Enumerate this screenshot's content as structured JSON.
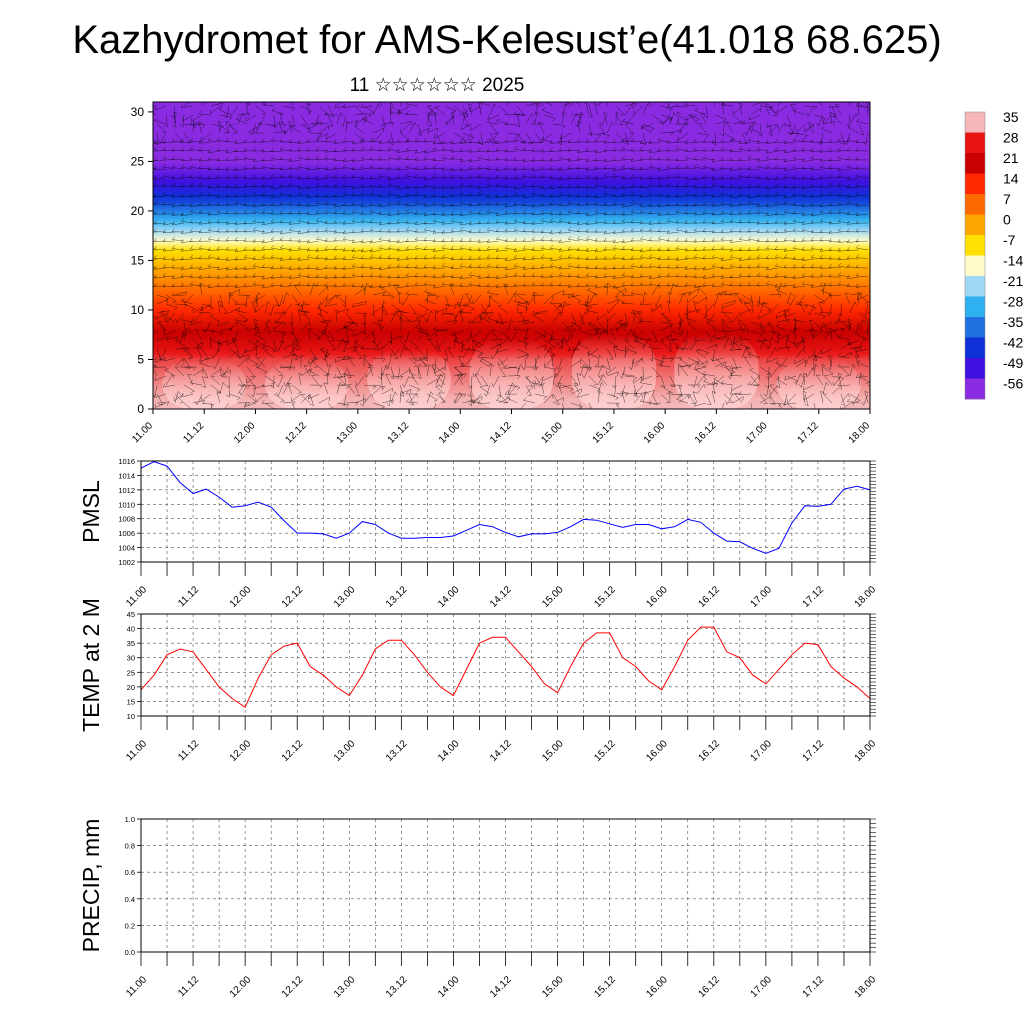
{
  "title": "Kazhydromet for AMS-Kelesust’e(41.018 68.625)",
  "subtitle": "11 ☆☆☆☆☆☆ 2025",
  "time_ticks": [
    "11.00",
    "11.12",
    "12.00",
    "12.12",
    "13.00",
    "13.12",
    "14.00",
    "14.12",
    "15.00",
    "15.12",
    "16.00",
    "16.12",
    "17.00",
    "17.12",
    "18.00"
  ],
  "colors": {
    "pmsl_line": "#0000ff",
    "temp_line": "#ff0000",
    "precip_line": "#006400",
    "grid": "#555555"
  },
  "chart_data": [
    {
      "type": "heatmap",
      "name": "cross-section",
      "x": [
        "11.00",
        "11.12",
        "12.00",
        "12.12",
        "13.00",
        "13.12",
        "14.00",
        "14.12",
        "15.00",
        "15.12",
        "16.00",
        "16.12",
        "17.00",
        "17.12",
        "18.00"
      ],
      "yticks": [
        0,
        5,
        10,
        15,
        20,
        25,
        30
      ],
      "ylim": [
        0,
        31
      ],
      "colorbar": {
        "labels": [
          "35",
          "28",
          "21",
          "14",
          "7",
          "0",
          "-7",
          "-14",
          "-21",
          "-28",
          "-35",
          "-42",
          "-49",
          "-56"
        ],
        "colors": [
          "#f4b6b6",
          "#e81414",
          "#c80000",
          "#ff2800",
          "#ff6a00",
          "#ffa500",
          "#ffe000",
          "#fffbc8",
          "#9fd8f5",
          "#2fb0f0",
          "#2070e0",
          "#1030d8",
          "#4010e0",
          "#8a2be2"
        ]
      },
      "vertical_profile": [
        [
          0,
          36
        ],
        [
          5,
          30
        ],
        [
          10,
          14
        ],
        [
          14,
          0
        ],
        [
          16,
          -7
        ],
        [
          18,
          -21
        ],
        [
          21,
          -40
        ],
        [
          23,
          -49
        ],
        [
          25,
          -56
        ],
        [
          27,
          -58
        ],
        [
          31,
          -60
        ]
      ]
    },
    {
      "type": "line",
      "name": "pmsl",
      "ylabel": "PMSL",
      "ylim": [
        1002,
        1016
      ],
      "yticks": [
        1002,
        1004,
        1006,
        1008,
        1010,
        1012,
        1014,
        1016
      ],
      "xlim": [
        0,
        168
      ],
      "x": [
        0,
        3,
        6,
        9,
        12,
        15,
        18,
        21,
        24,
        27,
        30,
        33,
        36,
        39,
        42,
        45,
        48,
        51,
        54,
        57,
        60,
        63,
        66,
        69,
        72,
        75,
        78,
        81,
        84,
        87,
        90,
        93,
        96,
        99,
        102,
        105,
        108,
        111,
        114,
        117,
        120,
        123,
        126,
        129,
        132,
        135,
        138,
        141,
        144,
        147,
        150,
        153,
        156,
        159,
        162,
        165,
        168
      ],
      "values": [
        1015.0,
        1015.9,
        1015.3,
        1013.0,
        1011.5,
        1012.1,
        1011.0,
        1009.6,
        1009.8,
        1010.3,
        1009.6,
        1007.7,
        1006.0,
        1006.0,
        1005.9,
        1005.3,
        1006.0,
        1007.6,
        1007.2,
        1006.0,
        1005.3,
        1005.3,
        1005.4,
        1005.4,
        1005.6,
        1006.4,
        1007.2,
        1006.9,
        1006.1,
        1005.5,
        1005.9,
        1005.9,
        1006.1,
        1006.9,
        1007.9,
        1007.8,
        1007.3,
        1006.8,
        1007.2,
        1007.2,
        1006.6,
        1006.9,
        1007.9,
        1007.5,
        1006.0,
        1004.9,
        1004.8,
        1003.9,
        1003.2,
        1003.9,
        1007.4,
        1009.8,
        1009.7,
        1010.0,
        1012.1,
        1012.5,
        1012.0
      ]
    },
    {
      "type": "line",
      "name": "temp",
      "ylabel": "TEMP at 2 M",
      "ylim": [
        10,
        45
      ],
      "yticks": [
        10,
        15,
        20,
        25,
        30,
        35,
        40,
        45
      ],
      "xlim": [
        0,
        168
      ],
      "x": [
        0,
        3,
        6,
        9,
        12,
        15,
        18,
        21,
        24,
        27,
        30,
        33,
        36,
        39,
        42,
        45,
        48,
        51,
        54,
        57,
        60,
        63,
        66,
        69,
        72,
        75,
        78,
        81,
        84,
        87,
        90,
        93,
        96,
        99,
        102,
        105,
        108,
        111,
        114,
        117,
        120,
        123,
        126,
        129,
        132,
        135,
        138,
        141,
        144,
        147,
        150,
        153,
        156,
        159,
        162,
        165,
        168
      ],
      "values": [
        19,
        24,
        31,
        33,
        32,
        26,
        20,
        16,
        13,
        23,
        31,
        34,
        35,
        27,
        24,
        20,
        17,
        24,
        33,
        36,
        36,
        31,
        25,
        20,
        17,
        26,
        35,
        37,
        37,
        32,
        27,
        21,
        18,
        27,
        35,
        38.5,
        38.5,
        30,
        27,
        22,
        19,
        27,
        36,
        40.5,
        40.5,
        32,
        30,
        24,
        21,
        26,
        31,
        35,
        34.5,
        27,
        23,
        20,
        16
      ]
    },
    {
      "type": "line",
      "name": "precip",
      "ylabel": "PRECIP, mm",
      "ylim": [
        0,
        1
      ],
      "yticks": [
        0.0,
        0.2,
        0.4,
        0.6,
        0.8,
        1.0
      ],
      "ytick_labels": [
        "0.0",
        "0.2",
        "0.4",
        "0.6",
        "0.8",
        "1.0"
      ],
      "xlim": [
        0,
        168
      ],
      "x": [
        0,
        3,
        6,
        9,
        12,
        15,
        18,
        21,
        24,
        27,
        30,
        33,
        36,
        39,
        42,
        45,
        48,
        51,
        54,
        57,
        60,
        63,
        66,
        69,
        72,
        75,
        78,
        81,
        84,
        87,
        90,
        93,
        96,
        99,
        102,
        105,
        108,
        111,
        114,
        117,
        120,
        123,
        126,
        129,
        132,
        135,
        138,
        141,
        144,
        147,
        150,
        153,
        156,
        159,
        162,
        165,
        168
      ],
      "values": [
        0,
        0,
        0,
        0,
        0,
        0,
        0,
        0,
        0,
        0,
        0,
        0,
        0,
        0,
        0,
        0,
        0,
        0,
        0,
        0,
        0,
        0,
        0,
        0,
        0,
        0,
        0,
        0,
        0,
        0,
        0,
        0,
        0,
        0,
        0,
        0,
        0,
        0,
        0,
        0,
        0,
        0,
        0,
        0,
        0,
        0,
        0,
        0,
        0,
        0,
        0,
        0,
        0,
        0,
        0,
        0,
        0
      ]
    }
  ]
}
